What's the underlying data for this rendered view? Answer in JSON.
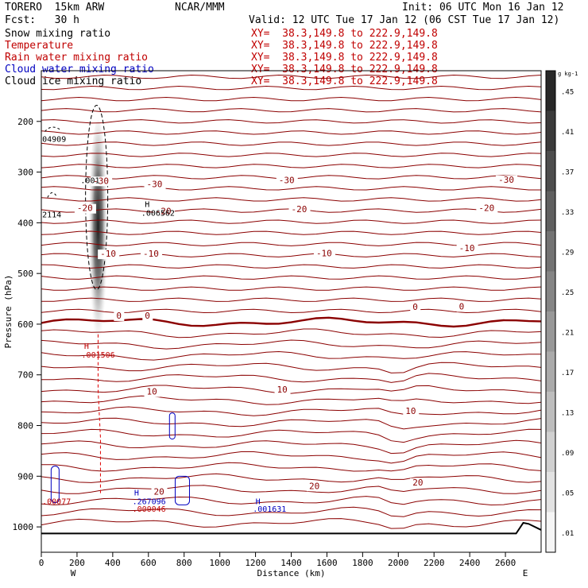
{
  "header": {
    "model": "TORERO  15km ARW",
    "org": "NCAR/MMM",
    "init": "Init: 06 UTC Mon 16 Jan 12",
    "fcst": "Fcst:   30 h",
    "valid": "Valid: 12 UTC Tue 17 Jan 12 (06 CST Tue 17 Jan 12)"
  },
  "fields": [
    {
      "label": "Snow mixing ratio",
      "color": "#000000",
      "xy": "XY=  38.3,149.8 to 222.9,149.8"
    },
    {
      "label": "Temperature",
      "color": "#c00000",
      "xy": "XY=  38.3,149.8 to 222.9,149.8"
    },
    {
      "label": "Rain water mixing ratio",
      "color": "#c00000",
      "xy": "XY=  38.3,149.8 to 222.9,149.8"
    },
    {
      "label": "Cloud water mixing ratio",
      "color": "#0000c0",
      "xy": "XY=  38.3,149.8 to 222.9,149.8"
    },
    {
      "label": "Cloud ice mixing ratio",
      "color": "#000000",
      "xy": "XY=  38.3,149.8 to 222.9,149.8"
    }
  ],
  "chart_data": {
    "type": "line",
    "xlabel": "Distance (km)",
    "ylabel": "Pressure (hPa)",
    "xlim": [
      0,
      2800
    ],
    "ylim": [
      1050,
      100
    ],
    "x_ticks": [
      0,
      200,
      400,
      600,
      800,
      1000,
      1200,
      1400,
      1600,
      1800,
      2000,
      2200,
      2400,
      2600
    ],
    "y_ticks": [
      200,
      300,
      400,
      500,
      600,
      700,
      800,
      900,
      1000
    ],
    "x_end_labels": {
      "left": "W",
      "right": "E"
    },
    "colorbar": {
      "unit": "g kg-1",
      "labels": [
        ".45",
        ".41",
        ".37",
        ".33",
        ".29",
        ".25",
        ".21",
        ".17",
        ".13",
        ".09",
        ".05",
        ".01"
      ]
    },
    "temperature_contour_labels": [
      {
        "text": "-30",
        "x": 290,
        "p": 323
      },
      {
        "text": "-30",
        "x": 590,
        "p": 330
      },
      {
        "text": "-30",
        "x": 1330,
        "p": 322
      },
      {
        "text": "-30",
        "x": 2560,
        "p": 321
      },
      {
        "text": "-20",
        "x": 200,
        "p": 377
      },
      {
        "text": "-20",
        "x": 640,
        "p": 383
      },
      {
        "text": "-20",
        "x": 1400,
        "p": 379
      },
      {
        "text": "-20",
        "x": 2450,
        "p": 377
      },
      {
        "text": "-10",
        "x": 330,
        "p": 467
      },
      {
        "text": "-10",
        "x": 570,
        "p": 467
      },
      {
        "text": "-10",
        "x": 1540,
        "p": 466
      },
      {
        "text": "-10",
        "x": 2340,
        "p": 456
      },
      {
        "text": "0",
        "x": 420,
        "p": 589
      },
      {
        "text": "0",
        "x": 580,
        "p": 589
      },
      {
        "text": "0",
        "x": 2080,
        "p": 572
      },
      {
        "text": "0",
        "x": 2340,
        "p": 571
      },
      {
        "text": "10",
        "x": 590,
        "p": 739
      },
      {
        "text": "10",
        "x": 1320,
        "p": 735
      },
      {
        "text": "10",
        "x": 2040,
        "p": 777
      },
      {
        "text": "20",
        "x": 630,
        "p": 936
      },
      {
        "text": "20",
        "x": 1500,
        "p": 925
      },
      {
        "text": "20",
        "x": 2080,
        "p": 918
      }
    ],
    "extrema_labels": [
      {
        "text": "04909",
        "x": 5,
        "p": 240,
        "color": "#000000"
      },
      {
        "text": ".001",
        "x": 220,
        "p": 322,
        "color": "#000000"
      },
      {
        "text": "2114",
        "x": 5,
        "p": 389,
        "color": "#000000"
      },
      {
        "text": "H",
        "x": 580,
        "p": 369,
        "color": "#000000"
      },
      {
        "text": ".006562",
        "x": 560,
        "p": 386,
        "color": "#000000"
      },
      {
        "text": "H",
        "x": 240,
        "p": 649,
        "color": "#c00000"
      },
      {
        "text": ".001506",
        "x": 225,
        "p": 666,
        "color": "#c00000"
      },
      {
        "text": "H",
        "x": 520,
        "p": 938,
        "color": "#0000c0"
      },
      {
        "text": ".267096",
        "x": 510,
        "p": 955,
        "color": "#0000c0"
      },
      {
        "text": ".000046",
        "x": 510,
        "p": 970,
        "color": "#c00000"
      },
      {
        "text": "H",
        "x": 1200,
        "p": 955,
        "color": "#0000c0"
      },
      {
        "text": ".001631",
        "x": 1185,
        "p": 970,
        "color": "#0000c0"
      },
      {
        "text": ".00077",
        "x": 5,
        "p": 955,
        "color": "#c00000"
      }
    ]
  }
}
